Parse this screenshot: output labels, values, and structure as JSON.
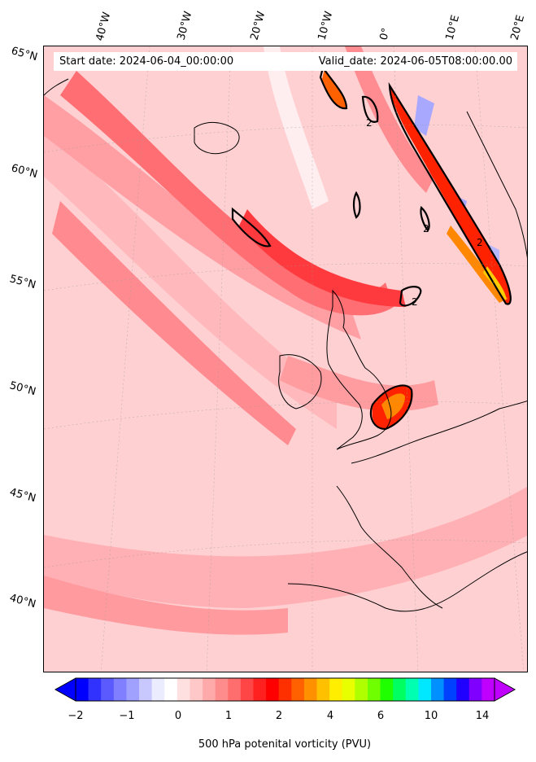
{
  "header": {
    "start_date": "Start date: 2024-06-04_00:00:00",
    "valid_date": "Valid_date: 2024-06-05T08:00:00.00"
  },
  "latitude_labels": [
    "65°N",
    "60°N",
    "55°N",
    "50°N",
    "45°N",
    "40°N"
  ],
  "longitude_labels": [
    "40°W",
    "30°W",
    "20°W",
    "10°W",
    "0°",
    "10°E",
    "20°E"
  ],
  "contour_label": "2",
  "colorbar": {
    "title": "500 hPa potenital vorticity (PVU)",
    "ticks": [
      "−2",
      "−1",
      "0",
      "1",
      "2",
      "4",
      "6",
      "10",
      "14"
    ],
    "colors": [
      "#0000ff",
      "#3232ff",
      "#5a5aff",
      "#7f7fff",
      "#a0a0ff",
      "#c8c8ff",
      "#ececff",
      "#ffffff",
      "#ffe0e0",
      "#ffc8c8",
      "#ffaaaa",
      "#ff8c8c",
      "#ff6e6e",
      "#ff4646",
      "#ff2020",
      "#ff0000",
      "#ff3000",
      "#ff6000",
      "#ff9000",
      "#ffc000",
      "#ffee00",
      "#e8ff00",
      "#b0ff00",
      "#70ff00",
      "#20ff00",
      "#00ff60",
      "#00ffb0",
      "#00e8ff",
      "#0090ff",
      "#0040ff",
      "#2000ff",
      "#8000ff",
      "#c000ff"
    ]
  }
}
